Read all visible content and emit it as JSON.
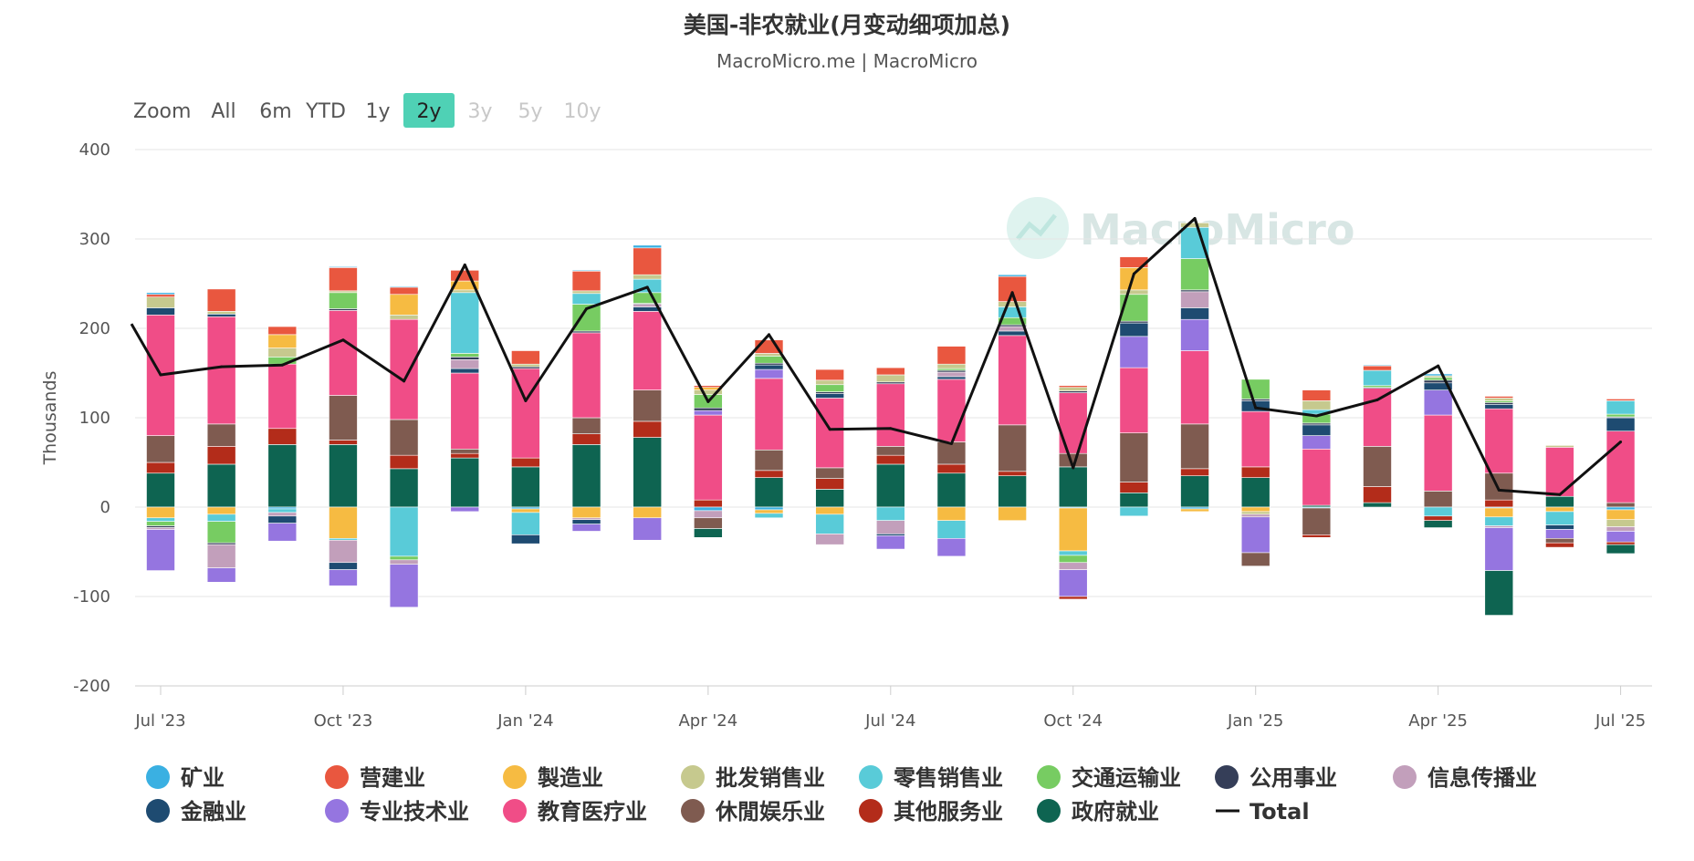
{
  "header": {
    "title": "美国-非农就业(月变动细项加总)",
    "subtitle": "MacroMicro.me | MacroMicro",
    "watermark": "MacroMicro"
  },
  "zoom": {
    "label": "Zoom",
    "buttons": [
      {
        "label": "All",
        "state": "normal"
      },
      {
        "label": "6m",
        "state": "normal"
      },
      {
        "label": "YTD",
        "state": "normal"
      },
      {
        "label": "1y",
        "state": "normal"
      },
      {
        "label": "2y",
        "state": "active"
      },
      {
        "label": "3y",
        "state": "disabled"
      },
      {
        "label": "5y",
        "state": "disabled"
      },
      {
        "label": "10y",
        "state": "disabled"
      }
    ]
  },
  "colors": {
    "active_button": "#4fd1b5",
    "grid": "#e6e6e6",
    "total_line": "#111111"
  },
  "chart_data": {
    "type": "bar",
    "stacked": true,
    "title": "美国-非农就业(月变动细项加总)",
    "ylabel": "Thousands",
    "ylim": [
      -200,
      400
    ],
    "yticks": [
      400,
      300,
      200,
      100,
      0,
      -100,
      -200
    ],
    "grid": true,
    "legend_position": "bottom",
    "x_tick_labels": [
      {
        "index": 0,
        "label": "Jul '23"
      },
      {
        "index": 3,
        "label": "Oct '23"
      },
      {
        "index": 6,
        "label": "Jan '24"
      },
      {
        "index": 9,
        "label": "Apr '24"
      },
      {
        "index": 12,
        "label": "Jul '24"
      },
      {
        "index": 15,
        "label": "Oct '24"
      },
      {
        "index": 18,
        "label": "Jan '25"
      },
      {
        "index": 21,
        "label": "Apr '25"
      },
      {
        "index": 24,
        "label": "Jul '25"
      }
    ],
    "months": [
      "2023-07",
      "2023-08",
      "2023-09",
      "2023-10",
      "2023-11",
      "2023-12",
      "2024-01",
      "2024-02",
      "2024-03",
      "2024-04",
      "2024-05",
      "2024-06",
      "2024-07",
      "2024-08",
      "2024-09",
      "2024-10",
      "2024-11",
      "2024-12",
      "2025-01",
      "2025-02",
      "2025-03",
      "2025-04",
      "2025-05",
      "2025-06",
      "2025-07"
    ],
    "series": [
      {
        "name": "矿业",
        "color": "#3ab0e2",
        "values": [
          2,
          0,
          -2,
          1,
          1,
          0,
          -2,
          1,
          3,
          -4,
          -3,
          0,
          0,
          0,
          2,
          -1,
          0,
          -2,
          0,
          -1,
          1,
          2,
          -1,
          0,
          -3
        ]
      },
      {
        "name": "营建业",
        "color": "#e9573f",
        "values": [
          3,
          25,
          9,
          26,
          8,
          12,
          15,
          22,
          30,
          2,
          15,
          12,
          8,
          20,
          28,
          2,
          12,
          0,
          0,
          12,
          5,
          0,
          2,
          0,
          2
        ]
      },
      {
        "name": "製造业",
        "color": "#f6bb42",
        "values": [
          -12,
          -8,
          15,
          -35,
          23,
          10,
          -4,
          -12,
          -12,
          3,
          -4,
          -8,
          0,
          -15,
          -15,
          -48,
          25,
          -3,
          -5,
          0,
          0,
          0,
          -10,
          -5,
          -11
        ]
      },
      {
        "name": "批发销售业",
        "color": "#c6c98e",
        "values": [
          12,
          3,
          10,
          2,
          5,
          3,
          3,
          3,
          5,
          5,
          3,
          5,
          8,
          5,
          6,
          4,
          5,
          5,
          -3,
          10,
          0,
          2,
          3,
          2,
          -8
        ]
      },
      {
        "name": "零售销售业",
        "color": "#59cbd8",
        "values": [
          -4,
          -8,
          -4,
          -2,
          -55,
          68,
          -25,
          12,
          15,
          0,
          -5,
          -22,
          -15,
          -20,
          12,
          -5,
          -10,
          35,
          0,
          5,
          17,
          -10,
          -10,
          -15,
          15
        ]
      },
      {
        "name": "交通运输业",
        "color": "#77cc62",
        "values": [
          -5,
          -24,
          8,
          18,
          -4,
          4,
          0,
          30,
          12,
          15,
          8,
          8,
          0,
          2,
          8,
          -8,
          30,
          35,
          22,
          10,
          2,
          3,
          2,
          0,
          3
        ]
      },
      {
        "name": "公用事业",
        "color": "#353e58",
        "values": [
          -2,
          -2,
          0,
          2,
          0,
          3,
          2,
          2,
          1,
          3,
          2,
          2,
          2,
          2,
          2,
          2,
          2,
          2,
          2,
          2,
          1,
          3,
          2,
          0,
          1
        ]
      },
      {
        "name": "信息传播业",
        "color": "#c29fbb",
        "values": [
          -2,
          -26,
          -4,
          -25,
          -5,
          10,
          0,
          -2,
          3,
          -8,
          0,
          -12,
          -15,
          5,
          5,
          -8,
          0,
          18,
          -3,
          0,
          0,
          0,
          -2,
          0,
          -5
        ]
      },
      {
        "name": "金融业",
        "color": "#1e4b71",
        "values": [
          8,
          3,
          -8,
          -8,
          0,
          5,
          -10,
          -5,
          5,
          0,
          5,
          5,
          -2,
          3,
          5,
          0,
          15,
          13,
          12,
          12,
          0,
          8,
          5,
          -5,
          15
        ]
      },
      {
        "name": "专业技术业",
        "color": "#9575e0",
        "values": [
          -46,
          -16,
          -20,
          -18,
          -48,
          -5,
          0,
          -8,
          -25,
          5,
          10,
          0,
          -15,
          -20,
          0,
          -30,
          35,
          35,
          -40,
          15,
          0,
          28,
          -48,
          -10,
          -12
        ]
      },
      {
        "name": "教育医疗业",
        "color": "#f04d87",
        "values": [
          135,
          120,
          72,
          95,
          112,
          85,
          100,
          95,
          88,
          95,
          80,
          78,
          70,
          70,
          100,
          68,
          73,
          82,
          62,
          63,
          65,
          85,
          72,
          55,
          80
        ]
      },
      {
        "name": "休閒娱乐业",
        "color": "#7f5b50",
        "values": [
          30,
          25,
          0,
          50,
          40,
          5,
          0,
          18,
          35,
          -12,
          23,
          12,
          10,
          25,
          52,
          15,
          55,
          50,
          -15,
          -30,
          45,
          18,
          30,
          -5,
          5
        ]
      },
      {
        "name": "其他服务业",
        "color": "#b32c1a",
        "values": [
          12,
          20,
          18,
          5,
          15,
          5,
          10,
          12,
          18,
          8,
          8,
          12,
          10,
          10,
          5,
          -3,
          12,
          8,
          12,
          -3,
          18,
          -5,
          8,
          -5,
          -3
        ]
      },
      {
        "name": "政府就业",
        "color": "#0e6451",
        "values": [
          38,
          48,
          70,
          70,
          43,
          55,
          45,
          70,
          78,
          -10,
          33,
          20,
          48,
          38,
          35,
          45,
          16,
          35,
          33,
          2,
          5,
          -8,
          -50,
          12,
          -10
        ]
      },
      {
        "name": "Total",
        "color": "#111111",
        "type": "line",
        "values": [
          148,
          157,
          159,
          187,
          141,
          271,
          119,
          222,
          246,
          118,
          193,
          87,
          88,
          71,
          240,
          44,
          261,
          323,
          111,
          102,
          120,
          158,
          19,
          14,
          73
        ]
      }
    ]
  }
}
